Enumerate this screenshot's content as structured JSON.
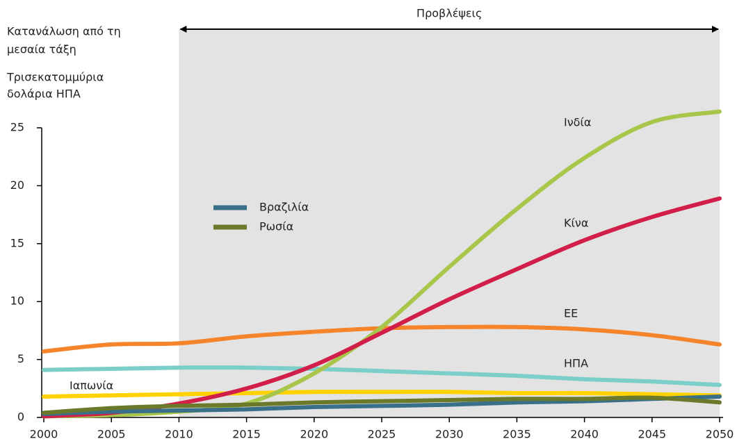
{
  "chart_data": {
    "type": "line",
    "ylabel": [
      "Κατανάλωση από τη",
      "μεσαία τάξη"
    ],
    "yunit": [
      "Τρισεκατομμύρια",
      "δολάρια ΗΠΑ"
    ],
    "forecast": {
      "label": "Προβλέψεις",
      "from": 2010,
      "to": 2050,
      "color": "#e3e3e3"
    },
    "x": [
      2000,
      2005,
      2010,
      2015,
      2020,
      2025,
      2030,
      2035,
      2040,
      2045,
      2050
    ],
    "xlim": [
      2000,
      2050
    ],
    "xticks": [
      2000,
      2005,
      2010,
      2015,
      2020,
      2025,
      2030,
      2035,
      2040,
      2045,
      2050
    ],
    "ylim": [
      0,
      25
    ],
    "yticks": [
      0,
      5,
      10,
      15,
      20,
      25
    ],
    "grid": false,
    "series": [
      {
        "name": "ΕΕ",
        "color": "#f5842a",
        "legend": false,
        "values": [
          5.7,
          6.3,
          6.4,
          7.0,
          7.4,
          7.7,
          7.8,
          7.8,
          7.6,
          7.1,
          6.3
        ]
      },
      {
        "name": "ΗΠΑ",
        "color": "#7ccfc9",
        "legend": false,
        "values": [
          4.1,
          4.2,
          4.3,
          4.3,
          4.2,
          4.0,
          3.8,
          3.6,
          3.3,
          3.1,
          2.8
        ]
      },
      {
        "name": "Ιαπωνία",
        "color": "#ffd200",
        "legend": false,
        "values": [
          1.8,
          1.9,
          2.0,
          2.1,
          2.2,
          2.2,
          2.2,
          2.1,
          2.1,
          2.0,
          1.9
        ]
      },
      {
        "name": "Ινδία",
        "color": "#a8c64a",
        "legend": false,
        "values": [
          0.1,
          0.2,
          0.5,
          1.2,
          3.8,
          7.8,
          13.0,
          18.0,
          22.4,
          25.5,
          26.4
        ]
      },
      {
        "name": "Κίνα",
        "color": "#d21f4a",
        "legend": false,
        "values": [
          0.1,
          0.4,
          1.2,
          2.5,
          4.5,
          7.3,
          10.2,
          12.8,
          15.3,
          17.3,
          18.9
        ]
      },
      {
        "name": "Βραζιλία",
        "color": "#3a6f8a",
        "legend": true,
        "values": [
          0.3,
          0.5,
          0.6,
          0.7,
          0.9,
          1.0,
          1.1,
          1.3,
          1.4,
          1.6,
          1.8
        ]
      },
      {
        "name": "Ρωσία",
        "color": "#6b7a2a",
        "legend": true,
        "values": [
          0.4,
          0.8,
          1.0,
          1.1,
          1.3,
          1.4,
          1.5,
          1.6,
          1.6,
          1.7,
          1.3
        ]
      }
    ]
  }
}
